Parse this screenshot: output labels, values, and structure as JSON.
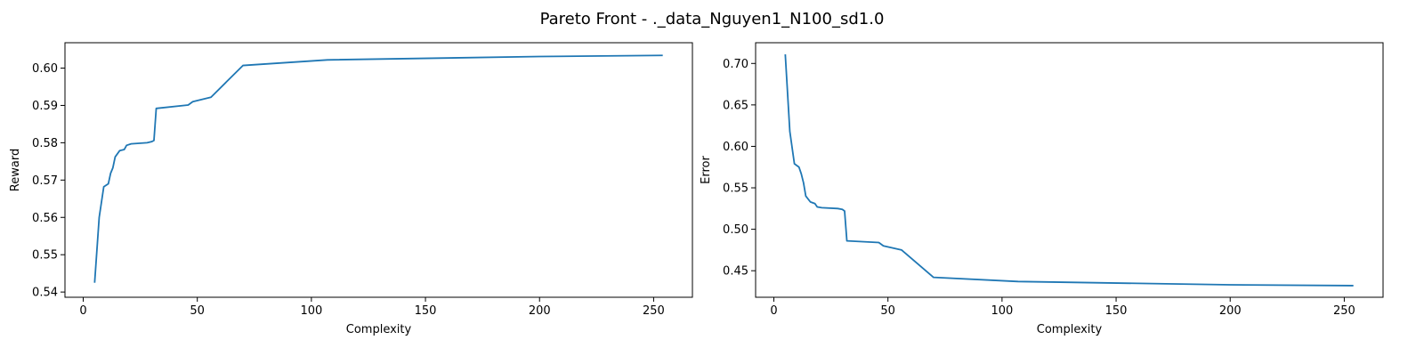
{
  "suptitle": "Pareto Front - ._data_Nguyen1_N100_sd1.0",
  "chart_data": [
    {
      "type": "line",
      "title": "",
      "xlabel": "Complexity",
      "ylabel": "Reward",
      "xlim": [
        -8,
        267
      ],
      "ylim": [
        0.5386,
        0.6068
      ],
      "xticks": [
        0,
        50,
        100,
        150,
        200,
        250
      ],
      "yticks": [
        0.54,
        0.55,
        0.56,
        0.57,
        0.58,
        0.59,
        0.6
      ],
      "ytick_labels": [
        "0.54",
        "0.55",
        "0.56",
        "0.57",
        "0.58",
        "0.59",
        "0.60"
      ],
      "grid": false,
      "color": "#1f77b4",
      "x": [
        5,
        7,
        9,
        11,
        12,
        13,
        14,
        16,
        18,
        19,
        21,
        28,
        30,
        31,
        32,
        46,
        48,
        56,
        70,
        107,
        200,
        254
      ],
      "y": [
        0.5425,
        0.56,
        0.5682,
        0.569,
        0.5718,
        0.5733,
        0.5762,
        0.5779,
        0.5782,
        0.5793,
        0.5797,
        0.58,
        0.5803,
        0.5806,
        0.5892,
        0.5901,
        0.591,
        0.5922,
        0.6007,
        0.6022,
        0.6031,
        0.6034
      ]
    },
    {
      "type": "line",
      "title": "",
      "xlabel": "Complexity",
      "ylabel": "Error",
      "xlim": [
        -8,
        267
      ],
      "ylim": [
        0.418,
        0.725
      ],
      "xticks": [
        0,
        50,
        100,
        150,
        200,
        250
      ],
      "yticks": [
        0.45,
        0.5,
        0.55,
        0.6,
        0.65,
        0.7
      ],
      "ytick_labels": [
        "0.45",
        "0.50",
        "0.55",
        "0.60",
        "0.65",
        "0.70"
      ],
      "grid": false,
      "color": "#1f77b4",
      "x": [
        5,
        7,
        9,
        11,
        12,
        13,
        14,
        16,
        18,
        19,
        21,
        28,
        30,
        31,
        32,
        46,
        48,
        56,
        70,
        107,
        200,
        254
      ],
      "y": [
        0.711,
        0.618,
        0.579,
        0.575,
        0.567,
        0.556,
        0.54,
        0.533,
        0.531,
        0.527,
        0.526,
        0.525,
        0.524,
        0.522,
        0.486,
        0.484,
        0.48,
        0.475,
        0.442,
        0.437,
        0.433,
        0.432
      ]
    }
  ]
}
